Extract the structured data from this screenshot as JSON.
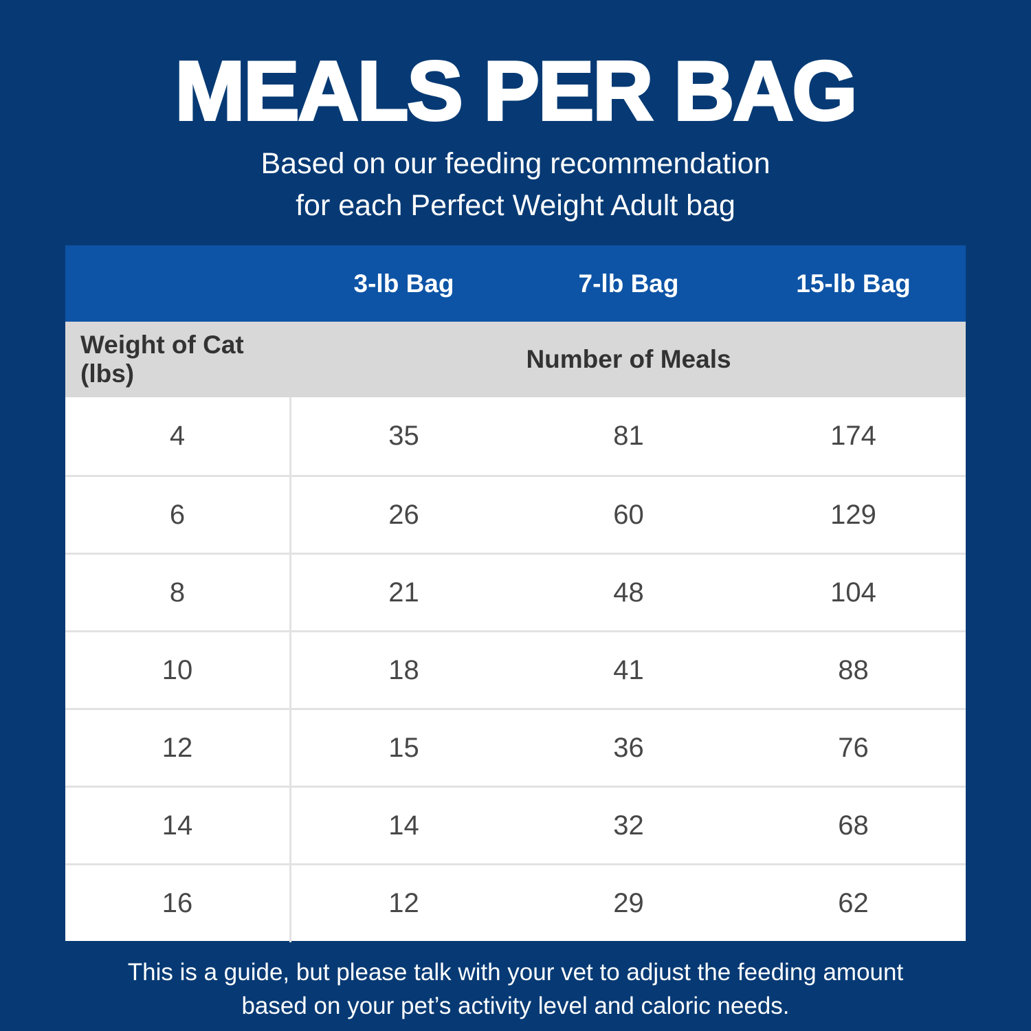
{
  "title": "MEALS PER BAG",
  "subtitle": {
    "line1": "Based on our feeding recommendation",
    "line2": "for each Perfect Weight Adult bag"
  },
  "table": {
    "bag_headers": [
      "3-lb Bag",
      "7-lb Bag",
      "15-lb Bag"
    ],
    "weight_header": "Weight of Cat (lbs)",
    "meals_header": "Number of Meals",
    "rows": [
      [
        "4",
        "35",
        "81",
        "174"
      ],
      [
        "6",
        "26",
        "60",
        "129"
      ],
      [
        "8",
        "21",
        "48",
        "104"
      ],
      [
        "10",
        "18",
        "41",
        "88"
      ],
      [
        "12",
        "15",
        "36",
        "76"
      ],
      [
        "14",
        "14",
        "32",
        "68"
      ],
      [
        "16",
        "12",
        "29",
        "62"
      ]
    ]
  },
  "footer": {
    "line1": "This is a guide, but please talk with your vet to adjust the feeding amount",
    "line2": "based on your pet’s activity level and caloric needs."
  },
  "colors": {
    "background_navy": "#073a74",
    "header_blue": "#0d54a6",
    "label_gray": "#d8d8d8",
    "row_white": "#ffffff",
    "divider_gray": "#e2e2e2",
    "text_dark": "#474747",
    "text_white": "#ffffff"
  },
  "chart_data": {
    "type": "table",
    "title": "MEALS PER BAG",
    "subtitle": "Based on our feeding recommendation for each Perfect Weight Adult bag",
    "columns": [
      "Weight of Cat (lbs)",
      "3-lb Bag",
      "7-lb Bag",
      "15-lb Bag"
    ],
    "row_header_label": "Weight of Cat (lbs)",
    "value_label": "Number of Meals",
    "rows": [
      [
        4,
        35,
        81,
        174
      ],
      [
        6,
        26,
        60,
        129
      ],
      [
        8,
        21,
        48,
        104
      ],
      [
        10,
        18,
        41,
        88
      ],
      [
        12,
        15,
        36,
        76
      ],
      [
        14,
        14,
        32,
        68
      ],
      [
        16,
        12,
        29,
        62
      ]
    ],
    "note": "This is a guide, but please talk with your vet to adjust the feeding amount based on your pet’s activity level and caloric needs."
  }
}
